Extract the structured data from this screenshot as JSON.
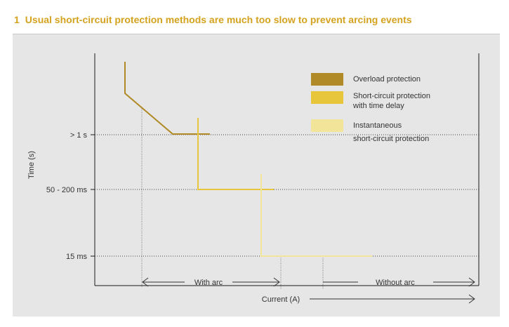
{
  "heading": {
    "number": "1",
    "text": "Usual short-circuit protection methods are much too slow to prevent arcing events"
  },
  "colors": {
    "accent": "#d4a21e",
    "overload": "#b08a26",
    "delayed": "#e8c63c",
    "instantaneous": "#f2e59a",
    "panel": "#e6e6e6"
  },
  "chart_data": {
    "type": "line",
    "title": "",
    "xlabel": "Current (A)",
    "ylabel": "Time (s)",
    "y_ticks": [
      "> 1 s",
      "50 - 200 ms",
      "15 ms"
    ],
    "x_ticks": [],
    "grid": "dotted horizontal lines at tick levels",
    "legend_position": "top-right",
    "series": [
      {
        "name": "Overload protection"
      },
      {
        "name": "Short-circuit protection with time delay"
      },
      {
        "name": "Instantaneous short-circuit protection"
      }
    ],
    "annotations": {
      "with_arc": "With arc",
      "without_arc": "Without arc"
    }
  }
}
